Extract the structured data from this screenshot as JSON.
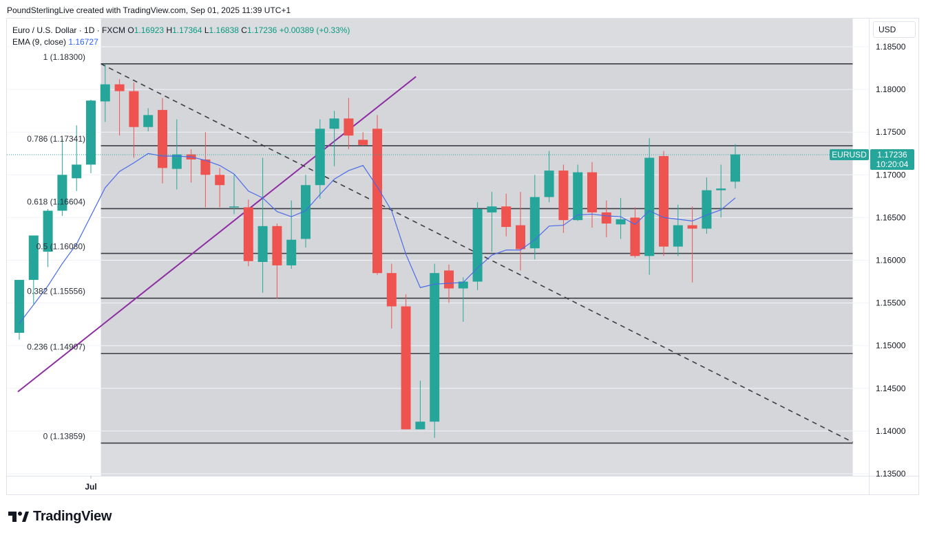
{
  "header": {
    "credit": "PoundSterlingLive created with TradingView.com, Sep 01, 2025 11:39 UTC+1"
  },
  "legend": {
    "symbol": "Euro / U.S. Dollar · 1D · FXCM",
    "open_label": "O",
    "open": "1.16923",
    "high_label": "H",
    "high": "1.17364",
    "low_label": "L",
    "low": "1.16838",
    "close_label": "C",
    "close": "1.17236",
    "change": "+0.00389 (+0.33%)",
    "ema_label": "EMA (9, close)",
    "ema_value": "1.16727"
  },
  "price_scale": {
    "currency": "USD",
    "ticks": [
      "1.18500",
      "1.18000",
      "1.17500",
      "1.17000",
      "1.16500",
      "1.16000",
      "1.15500",
      "1.15000",
      "1.14500",
      "1.14000",
      "1.13500"
    ],
    "tick_values": [
      1.185,
      1.18,
      1.175,
      1.17,
      1.165,
      1.16,
      1.155,
      1.15,
      1.145,
      1.14,
      1.135
    ]
  },
  "price_tag": {
    "symbol": "EURUSD",
    "price": "1.17236",
    "countdown": "10:20:04"
  },
  "time_axis": {
    "labels": [
      "Jul"
    ]
  },
  "brand": {
    "name": "TradingView"
  },
  "colors": {
    "up": "#26a69a",
    "down": "#ef5350",
    "ema": "#4a6ae8",
    "trendline": "#8e2ca3",
    "fib_zone": "#d5d6d9",
    "fib_line": "#3a3d44",
    "current_price": "#26a69a"
  },
  "chart_data": {
    "type": "candlestick",
    "title": "Euro / U.S. Dollar · 1D · FXCM",
    "y_range": [
      1.1345,
      1.1885
    ],
    "x_axis_label_at_index": {
      "Jul": 5
    },
    "candles": [
      {
        "o": 1.1515,
        "h": 1.1577,
        "l": 1.1507,
        "c": 1.1577
      },
      {
        "o": 1.1577,
        "h": 1.1629,
        "l": 1.1549,
        "c": 1.1629
      },
      {
        "o": 1.161,
        "h": 1.166,
        "l": 1.1592,
        "c": 1.1658
      },
      {
        "o": 1.1658,
        "h": 1.1742,
        "l": 1.1652,
        "c": 1.17
      },
      {
        "o": 1.1696,
        "h": 1.1758,
        "l": 1.1681,
        "c": 1.1712
      },
      {
        "o": 1.1712,
        "h": 1.1788,
        "l": 1.1702,
        "c": 1.1787
      },
      {
        "o": 1.1786,
        "h": 1.183,
        "l": 1.1762,
        "c": 1.1806
      },
      {
        "o": 1.1806,
        "h": 1.1812,
        "l": 1.1746,
        "c": 1.1798
      },
      {
        "o": 1.1798,
        "h": 1.1808,
        "l": 1.172,
        "c": 1.1756
      },
      {
        "o": 1.1756,
        "h": 1.1778,
        "l": 1.1751,
        "c": 1.177
      },
      {
        "o": 1.1776,
        "h": 1.179,
        "l": 1.169,
        "c": 1.1708
      },
      {
        "o": 1.1707,
        "h": 1.1765,
        "l": 1.1683,
        "c": 1.1724
      },
      {
        "o": 1.1724,
        "h": 1.173,
        "l": 1.1691,
        "c": 1.1718
      },
      {
        "o": 1.1718,
        "h": 1.175,
        "l": 1.1662,
        "c": 1.17
      },
      {
        "o": 1.17,
        "h": 1.1708,
        "l": 1.1662,
        "c": 1.1688
      },
      {
        "o": 1.1663,
        "h": 1.17,
        "l": 1.1654,
        "c": 1.1663
      },
      {
        "o": 1.1662,
        "h": 1.1671,
        "l": 1.1593,
        "c": 1.1599
      },
      {
        "o": 1.1598,
        "h": 1.172,
        "l": 1.1562,
        "c": 1.164
      },
      {
        "o": 1.164,
        "h": 1.1643,
        "l": 1.1555,
        "c": 1.1594
      },
      {
        "o": 1.1594,
        "h": 1.167,
        "l": 1.159,
        "c": 1.1624
      },
      {
        "o": 1.1625,
        "h": 1.17,
        "l": 1.1615,
        "c": 1.1688
      },
      {
        "o": 1.1688,
        "h": 1.1765,
        "l": 1.1672,
        "c": 1.1754
      },
      {
        "o": 1.1754,
        "h": 1.1775,
        "l": 1.171,
        "c": 1.1766
      },
      {
        "o": 1.1766,
        "h": 1.179,
        "l": 1.173,
        "c": 1.1746
      },
      {
        "o": 1.1741,
        "h": 1.175,
        "l": 1.1734,
        "c": 1.1735
      },
      {
        "o": 1.1754,
        "h": 1.177,
        "l": 1.1583,
        "c": 1.1585
      },
      {
        "o": 1.1585,
        "h": 1.1596,
        "l": 1.152,
        "c": 1.1546
      },
      {
        "o": 1.1546,
        "h": 1.156,
        "l": 1.1402,
        "c": 1.1402
      },
      {
        "o": 1.1402,
        "h": 1.1459,
        "l": 1.1402,
        "c": 1.1411
      },
      {
        "o": 1.1411,
        "h": 1.1596,
        "l": 1.1392,
        "c": 1.1585
      },
      {
        "o": 1.1588,
        "h": 1.1595,
        "l": 1.155,
        "c": 1.1567
      },
      {
        "o": 1.1567,
        "h": 1.158,
        "l": 1.1528,
        "c": 1.1575
      },
      {
        "o": 1.1575,
        "h": 1.1668,
        "l": 1.1565,
        "c": 1.166
      },
      {
        "o": 1.1656,
        "h": 1.168,
        "l": 1.161,
        "c": 1.1663
      },
      {
        "o": 1.1663,
        "h": 1.1678,
        "l": 1.1628,
        "c": 1.1639
      },
      {
        "o": 1.1641,
        "h": 1.168,
        "l": 1.1588,
        "c": 1.1613
      },
      {
        "o": 1.1614,
        "h": 1.17,
        "l": 1.1601,
        "c": 1.1674
      },
      {
        "o": 1.1674,
        "h": 1.1728,
        "l": 1.1668,
        "c": 1.1705
      },
      {
        "o": 1.1705,
        "h": 1.1712,
        "l": 1.1632,
        "c": 1.1647
      },
      {
        "o": 1.1647,
        "h": 1.1712,
        "l": 1.1646,
        "c": 1.1703
      },
      {
        "o": 1.1703,
        "h": 1.1715,
        "l": 1.1638,
        "c": 1.1656
      },
      {
        "o": 1.1656,
        "h": 1.167,
        "l": 1.1627,
        "c": 1.1643
      },
      {
        "o": 1.1642,
        "h": 1.1673,
        "l": 1.1625,
        "c": 1.1648
      },
      {
        "o": 1.165,
        "h": 1.1662,
        "l": 1.1603,
        "c": 1.1605
      },
      {
        "o": 1.1605,
        "h": 1.1743,
        "l": 1.1583,
        "c": 1.172
      },
      {
        "o": 1.1722,
        "h": 1.1728,
        "l": 1.1605,
        "c": 1.1616
      },
      {
        "o": 1.1616,
        "h": 1.1665,
        "l": 1.1605,
        "c": 1.1641
      },
      {
        "o": 1.1641,
        "h": 1.1663,
        "l": 1.1574,
        "c": 1.1637
      },
      {
        "o": 1.1637,
        "h": 1.1697,
        "l": 1.1631,
        "c": 1.1682
      },
      {
        "o": 1.1682,
        "h": 1.1712,
        "l": 1.165,
        "c": 1.1684
      },
      {
        "o": 1.1692,
        "h": 1.1736,
        "l": 1.1684,
        "c": 1.1724
      }
    ],
    "ema": {
      "name": "EMA (9, close)",
      "values": [
        1.1526,
        1.1548,
        1.157,
        1.1596,
        1.1619,
        1.1652,
        1.1685,
        1.1704,
        1.1714,
        1.1725,
        1.1722,
        1.1722,
        1.1721,
        1.1717,
        1.1711,
        1.1701,
        1.1681,
        1.1673,
        1.1657,
        1.1651,
        1.1658,
        1.1677,
        1.1695,
        1.1705,
        1.1711,
        1.1686,
        1.1658,
        1.1607,
        1.1568,
        1.1572,
        1.1573,
        1.1574,
        1.1591,
        1.1606,
        1.1612,
        1.1612,
        1.1624,
        1.164,
        1.1641,
        1.1653,
        1.1654,
        1.1652,
        1.1651,
        1.1642,
        1.1658,
        1.165,
        1.1648,
        1.1646,
        1.1653,
        1.1659,
        1.1673
      ]
    },
    "fibonacci": {
      "levels": [
        {
          "label": "1 (1.18300)",
          "price": 1.183
        },
        {
          "label": "0.786 (1.17341)",
          "price": 1.17341
        },
        {
          "label": "0.618 (1.16604)",
          "price": 1.16604
        },
        {
          "label": "0.5 (1.16080)",
          "price": 1.1608
        },
        {
          "label": "0.382 (1.15556)",
          "price": 1.15556
        },
        {
          "label": "0.236 (1.14907)",
          "price": 1.14907
        },
        {
          "label": "0 (1.13859)",
          "price": 1.13859
        }
      ],
      "start_index": 5.7,
      "end_index": 58.2
    },
    "trendlines": [
      {
        "style": "solid",
        "from": {
          "i": -0.1,
          "p": 1.1446
        },
        "to": {
          "i": 27.7,
          "p": 1.1815
        }
      },
      {
        "style": "dashed",
        "from": {
          "i": 5.7,
          "p": 1.183
        },
        "to": {
          "i": 58.2,
          "p": 1.1387
        }
      }
    ]
  }
}
